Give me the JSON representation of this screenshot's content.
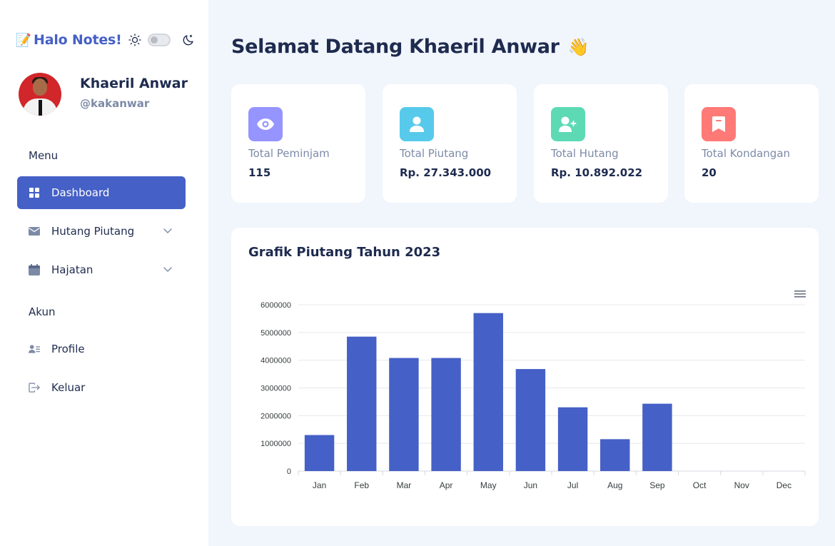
{
  "brand": {
    "logo": "📝",
    "name": "Halo Notes!",
    "theme_toggle": "off"
  },
  "user": {
    "name": "Khaeril Anwar",
    "handle": "@kakanwar"
  },
  "sidebar": {
    "menu_heading": "Menu",
    "items": [
      {
        "label": "Dashboard",
        "icon": "grid-icon",
        "active": true
      },
      {
        "label": "Hutang Piutang",
        "icon": "envelope-icon",
        "has_submenu": true
      },
      {
        "label": "Hajatan",
        "icon": "calendar-icon",
        "has_submenu": true
      }
    ],
    "account_heading": "Akun",
    "account_items": [
      {
        "label": "Profile",
        "icon": "user-list-icon"
      },
      {
        "label": "Keluar",
        "icon": "logout-icon"
      }
    ]
  },
  "main": {
    "greeting": "Selamat Datang Khaeril Anwar",
    "greeting_emoji": "👋"
  },
  "cards": [
    {
      "label": "Total Peminjam",
      "value": "115",
      "icon": "eye-icon",
      "color": "#9694ff"
    },
    {
      "label": "Total Piutang",
      "value": "Rp. 27.343.000",
      "icon": "user-icon",
      "color": "#57caeb"
    },
    {
      "label": "Total Hutang",
      "value": "Rp. 10.892.022",
      "icon": "user-plus-icon",
      "color": "#5ddab4"
    },
    {
      "label": "Total Kondangan",
      "value": "20",
      "icon": "bookmark-icon",
      "color": "#ff7976"
    }
  ],
  "chart_title": "Grafik Piutang Tahun 2023",
  "chart_data": {
    "type": "bar",
    "title": "Grafik Piutang Tahun 2023",
    "categories": [
      "Jan",
      "Feb",
      "Mar",
      "Apr",
      "May",
      "Jun",
      "Jul",
      "Aug",
      "Sep",
      "Oct",
      "Nov",
      "Dec"
    ],
    "values": [
      1300000,
      4850000,
      4080000,
      4080000,
      5700000,
      3680000,
      2300000,
      1150000,
      2430000,
      0,
      0,
      0
    ],
    "yticks": [
      "0",
      "1000000",
      "2000000",
      "3000000",
      "4000000",
      "5000000",
      "6000000"
    ],
    "ylim": [
      0,
      6000000
    ],
    "grid": true,
    "color": "#4560c6",
    "xlabel": "",
    "ylabel": ""
  }
}
